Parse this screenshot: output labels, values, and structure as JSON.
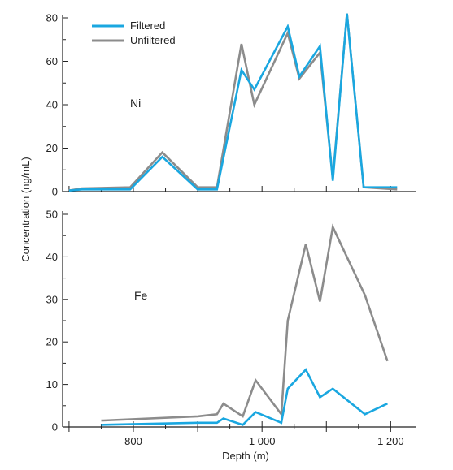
{
  "chart_data": {
    "type": "line",
    "xlabel": "Depth (m)",
    "ylabel": "Concentration (ng/mL)",
    "xlim": [
      690,
      1240
    ],
    "x_ticks": [
      800,
      1000,
      1200
    ],
    "x_tick_labels": [
      "800",
      "1 000",
      "1 200"
    ],
    "colors": {
      "Filtered": "#1aa7e0",
      "Unfiltered": "#8c8c8c"
    },
    "legend": {
      "placement": "top-left",
      "entries": [
        "Filtered",
        "Unfiltered"
      ]
    },
    "panels": [
      {
        "label": "Ni",
        "ylim": [
          0,
          80
        ],
        "y_ticks": [
          0,
          20,
          40,
          60,
          80
        ],
        "y_tick_labels": [
          "0",
          "20",
          "40",
          "60",
          "80"
        ],
        "series": [
          {
            "name": "Unfiltered",
            "x": [
              700,
              720,
              795,
              845,
              900,
              930,
              968,
              988,
              1040,
              1058,
              1090,
              1110,
              1132,
              1158,
              1210
            ],
            "y": [
              0.5,
              1.5,
              2,
              18,
              2,
              2,
              68,
              40,
              73,
              52,
              64,
              6,
              82,
              2,
              1
            ]
          },
          {
            "name": "Filtered",
            "x": [
              700,
              720,
              795,
              845,
              900,
              930,
              968,
              988,
              1040,
              1058,
              1090,
              1110,
              1132,
              1158,
              1210
            ],
            "y": [
              0.5,
              1,
              1,
              16,
              1,
              1,
              56,
              47,
              76,
              53,
              67,
              5,
              82,
              2,
              2
            ]
          }
        ]
      },
      {
        "label": "Fe",
        "ylim": [
          0,
          50
        ],
        "y_ticks": [
          0,
          10,
          20,
          30,
          40,
          50
        ],
        "y_tick_labels": [
          "0",
          "10",
          "20",
          "30",
          "40",
          "50"
        ],
        "series": [
          {
            "name": "Unfiltered",
            "x": [
              750,
              900,
              930,
              940,
              970,
              990,
              1030,
              1040,
              1068,
              1090,
              1110,
              1160,
              1195
            ],
            "y": [
              1.5,
              2.5,
              3,
              5.5,
              2.5,
              11,
              3,
              25,
              43,
              29.5,
              47,
              31,
              15.5
            ]
          },
          {
            "name": "Filtered",
            "x": [
              750,
              900,
              930,
              940,
              970,
              990,
              1030,
              1040,
              1068,
              1090,
              1110,
              1160,
              1195
            ],
            "y": [
              0.5,
              1,
              1,
              2,
              0.5,
              3.5,
              1,
              9,
              13.5,
              7,
              9,
              3,
              5.5
            ]
          }
        ]
      }
    ]
  }
}
